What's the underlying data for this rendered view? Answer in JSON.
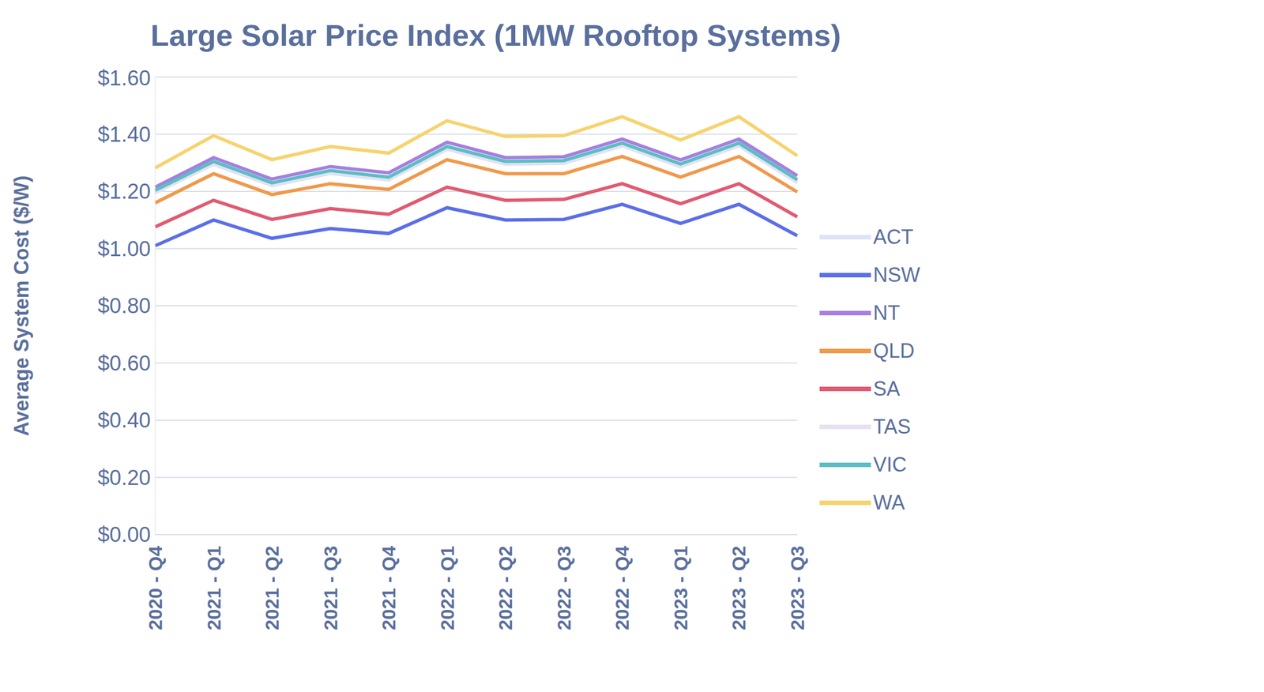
{
  "chart_data": {
    "type": "line",
    "title": "Large Solar Price Index (1MW Rooftop Systems)",
    "y_label": "Average System Cost ($/W)",
    "categories": [
      "2020 - Q4",
      "2021 - Q1",
      "2021 - Q2",
      "2021 - Q3",
      "2021 - Q4",
      "2022 - Q1",
      "2022 - Q2",
      "2022 - Q3",
      "2022 - Q4",
      "2023 - Q1",
      "2023 - Q2",
      "2023 - Q3"
    ],
    "series": [
      {
        "name": "ACT",
        "color": "#dde3f5",
        "values": [
          1.195,
          1.295,
          1.22,
          1.263,
          1.24,
          1.347,
          1.295,
          1.298,
          1.359,
          1.286,
          1.359,
          1.231
        ]
      },
      {
        "name": "NSW",
        "color": "#5b6ee8",
        "values": [
          1.01,
          1.1,
          1.036,
          1.07,
          1.053,
          1.143,
          1.1,
          1.102,
          1.155,
          1.088,
          1.155,
          1.045
        ]
      },
      {
        "name": "NT",
        "color": "#a57fe0",
        "values": [
          1.215,
          1.318,
          1.243,
          1.287,
          1.265,
          1.372,
          1.318,
          1.321,
          1.383,
          1.31,
          1.383,
          1.255
        ]
      },
      {
        "name": "QLD",
        "color": "#f0994a",
        "values": [
          1.16,
          1.262,
          1.189,
          1.227,
          1.207,
          1.311,
          1.262,
          1.262,
          1.322,
          1.25,
          1.322,
          1.198
        ]
      },
      {
        "name": "SA",
        "color": "#e05a72",
        "values": [
          1.076,
          1.169,
          1.102,
          1.14,
          1.12,
          1.215,
          1.169,
          1.172,
          1.227,
          1.157,
          1.227,
          1.111
        ]
      },
      {
        "name": "TAS",
        "color": "#e8e0f2",
        "values": [
          1.2,
          1.3,
          1.225,
          1.268,
          1.245,
          1.352,
          1.3,
          1.303,
          1.364,
          1.291,
          1.364,
          1.236
        ]
      },
      {
        "name": "VIC",
        "color": "#5bbec4",
        "values": [
          1.204,
          1.305,
          1.23,
          1.273,
          1.25,
          1.357,
          1.305,
          1.308,
          1.369,
          1.296,
          1.369,
          1.241
        ]
      },
      {
        "name": "WA",
        "color": "#f7d36e",
        "values": [
          1.282,
          1.395,
          1.311,
          1.357,
          1.334,
          1.447,
          1.392,
          1.395,
          1.461,
          1.38,
          1.461,
          1.325
        ]
      }
    ],
    "ylim": [
      0,
      1.6
    ],
    "yticks": [
      {
        "value": 0,
        "label": "$0.00"
      },
      {
        "value": 0.2,
        "label": "$0.20"
      },
      {
        "value": 0.4,
        "label": "$0.40"
      },
      {
        "value": 0.6,
        "label": "$0.60"
      },
      {
        "value": 0.8,
        "label": "$0.80"
      },
      {
        "value": 1,
        "label": "$1.00"
      },
      {
        "value": 1.2,
        "label": "$1.20"
      },
      {
        "value": 1.4,
        "label": "$1.40"
      },
      {
        "value": 1.6,
        "label": "$1.60"
      }
    ],
    "grid": true,
    "legend": "right"
  }
}
